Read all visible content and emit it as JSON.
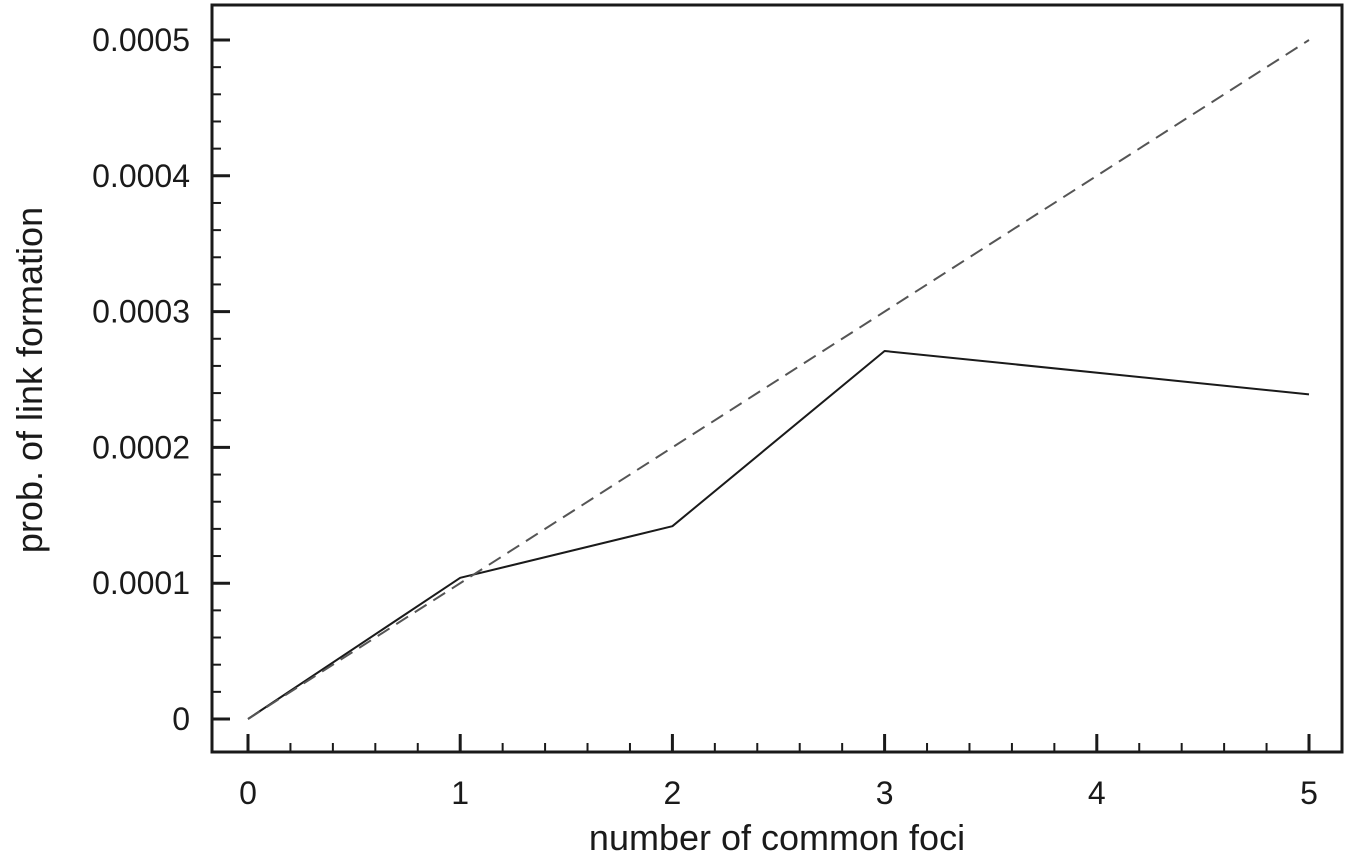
{
  "chart_data": {
    "type": "line",
    "title": "",
    "xlabel": "number of common foci",
    "ylabel": "prob. of link formation",
    "xlim": [
      0,
      5
    ],
    "ylim": [
      0,
      0.0005
    ],
    "x_ticks": [
      0,
      1,
      2,
      3,
      4,
      5
    ],
    "x_tick_labels": [
      "0",
      "1",
      "2",
      "3",
      "4",
      "5"
    ],
    "y_ticks": [
      0,
      0.0001,
      0.0002,
      0.0003,
      0.0004,
      0.0005
    ],
    "y_tick_labels": [
      "0",
      "0.0001",
      "0.0002",
      "0.0003",
      "0.0004",
      "0.0005"
    ],
    "grid": false,
    "legend": "none",
    "series": [
      {
        "style": "solid",
        "color": "#1a1a1a",
        "x": [
          0,
          1,
          2,
          3,
          5
        ],
        "values": [
          0,
          0.000104,
          0.000142,
          0.000271,
          0.000239
        ]
      },
      {
        "style": "dashed",
        "color": "#555555",
        "x": [
          0,
          5
        ],
        "values": [
          0,
          0.0005
        ]
      }
    ]
  }
}
